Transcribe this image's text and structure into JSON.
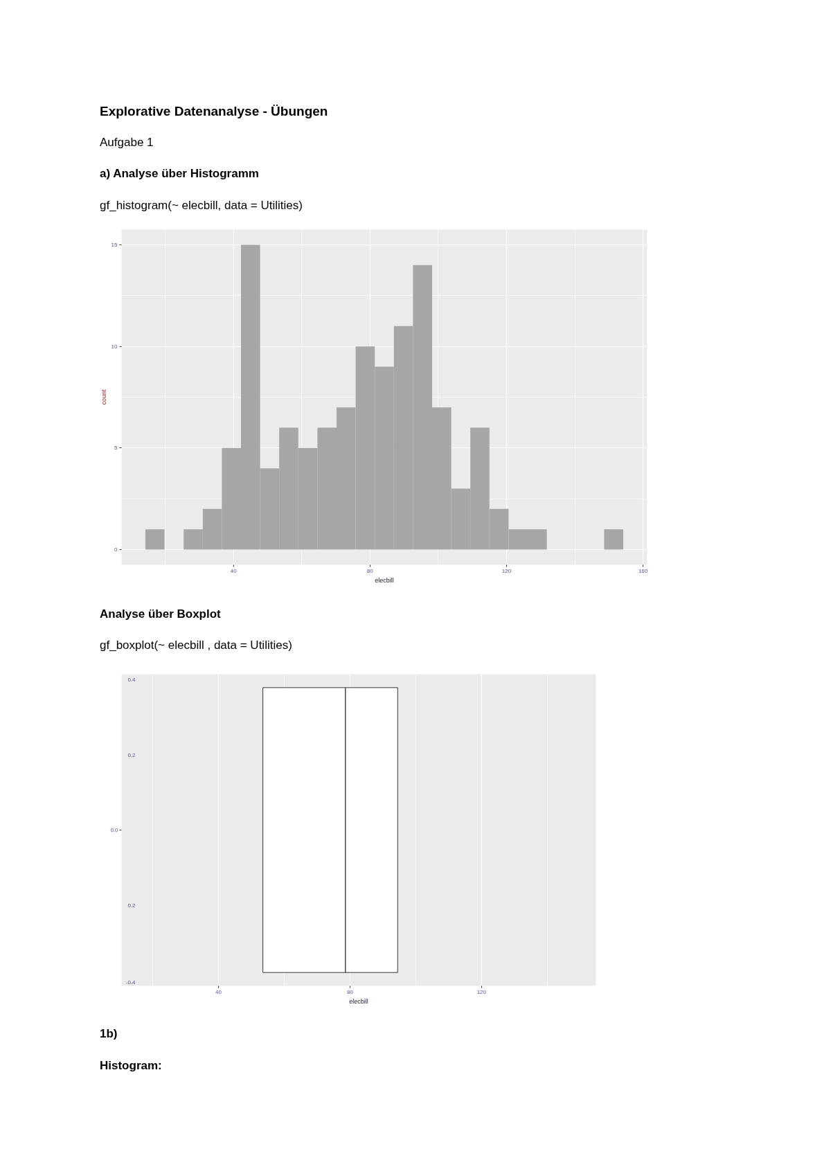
{
  "chart_data": [
    {
      "type": "histogram",
      "title": "Explorative Datenanalyse - Übungen",
      "subtitle": "Aufgabe 1",
      "annotations": [
        "a) Analyse über Histogramm",
        "gf_histogram(~ elecbill, data = Utilities)"
      ],
      "xlabel": "elecbill",
      "ylabel": "count",
      "bins": [
        14.2,
        19.8,
        25.4,
        31.0,
        36.6,
        42.2,
        47.8,
        53.4,
        59.0,
        64.6,
        70.2,
        75.8,
        81.4,
        87.0,
        92.6,
        98.2,
        103.8,
        109.4,
        115.0,
        120.6,
        126.2,
        131.8,
        137.4,
        143.0,
        148.6,
        154.2
      ],
      "values": [
        1,
        0,
        1,
        2,
        5,
        15,
        4,
        6,
        5,
        6,
        7,
        10,
        9,
        11,
        14,
        7,
        3,
        6,
        2,
        1,
        1,
        0,
        0,
        0,
        1
      ],
      "color": "#a6a6a6",
      "xlim": [
        7.2,
        161.2
      ],
      "xticks": [
        40,
        80,
        120,
        160
      ],
      "ylim": [
        -0.75,
        15.75
      ],
      "yticks": [
        0,
        5,
        10,
        15
      ],
      "grid": true
    },
    {
      "type": "box",
      "orientation": "horizontal",
      "title": "Analyse über Boxplot",
      "subtitle": "gf_boxplot(~ elecbill , data = Utilities)",
      "annotations": [
        "0.4",
        "0.2",
        "0.2",
        "-0.4",
        "1b)",
        "Histogram:"
      ],
      "xlabel": "elecbill",
      "categories": [
        "0.0"
      ],
      "boxes": [
        {
          "low": 53.5,
          "q1": 53.5,
          "median": 78.6,
          "q3": 94.5,
          "high": 94.5
        }
      ],
      "color": "#ffffff",
      "xlim": [
        10.5,
        154.8
      ],
      "xticks": [
        40,
        80,
        120
      ],
      "grid": "x"
    }
  ]
}
